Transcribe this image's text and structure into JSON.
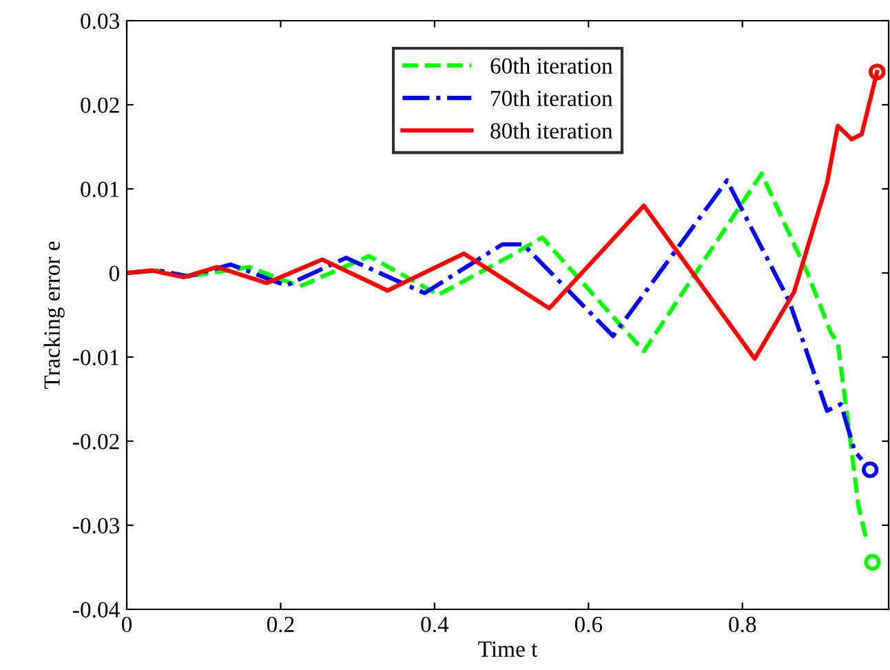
{
  "chart_data": {
    "type": "line",
    "xlabel": "Time t",
    "ylabel": "Tracking error e",
    "xlim": [
      0,
      0.99
    ],
    "ylim": [
      -0.04,
      0.03
    ],
    "xticks": [
      0,
      0.2,
      0.4,
      0.6,
      0.8
    ],
    "yticks": [
      -0.04,
      -0.03,
      -0.02,
      -0.01,
      0,
      0.01,
      0.02,
      0.03
    ],
    "grid": false,
    "legend": "top",
    "series": [
      {
        "name": "60th iteration",
        "color": "#00ff00",
        "line_style": "dashed",
        "x": [
          0,
          0.04,
          0.08,
          0.159,
          0.225,
          0.315,
          0.405,
          0.5,
          0.54,
          0.672,
          0.825,
          0.885,
          0.915,
          0.924,
          0.939,
          0.951,
          0.962
        ],
        "values": [
          0,
          0.0003,
          -0.0004,
          0.0007,
          -0.0016,
          0.002,
          -0.0026,
          0.0021,
          0.0042,
          -0.0093,
          0.0118,
          -0.0001,
          -0.0071,
          -0.0083,
          -0.019,
          -0.0278,
          -0.032
        ]
      },
      {
        "name": "70th iteration",
        "color": "#0000ff",
        "line_style": "dashdot",
        "x": [
          0,
          0.04,
          0.08,
          0.135,
          0.207,
          0.285,
          0.387,
          0.488,
          0.515,
          0.632,
          0.78,
          0.861,
          0.91,
          0.928,
          0.946,
          0.955
        ],
        "values": [
          0,
          0.0003,
          -0.0004,
          0.001,
          -0.0015,
          0.0018,
          -0.0024,
          0.0034,
          0.0034,
          -0.0075,
          0.011,
          -0.0034,
          -0.0164,
          -0.0156,
          -0.0212,
          -0.0222
        ]
      },
      {
        "name": "80th iteration",
        "color": "#ff0000",
        "line_style": "solid",
        "x": [
          0,
          0.032,
          0.074,
          0.117,
          0.182,
          0.254,
          0.339,
          0.438,
          0.549,
          0.672,
          0.816,
          0.867,
          0.91,
          0.924,
          0.942,
          0.955,
          0.975
        ],
        "values": [
          0,
          0.0003,
          -0.0005,
          0.0007,
          -0.0012,
          0.0016,
          -0.0021,
          0.0023,
          -0.0042,
          0.008,
          -0.0102,
          -0.0023,
          0.0107,
          0.0175,
          0.0159,
          0.0165,
          0.0239
        ]
      },
      {
        "type": "scatter",
        "marker": "circle",
        "color": "#00ff00",
        "x": [
          0.969
        ],
        "values": [
          -0.0344
        ]
      },
      {
        "type": "scatter",
        "marker": "circle",
        "color": "#0000ff",
        "x": [
          0.966
        ],
        "values": [
          -0.0234
        ]
      },
      {
        "type": "scatter",
        "marker": "circle",
        "color": "#ff0000",
        "x": [
          0.975
        ],
        "values": [
          0.0239
        ]
      }
    ]
  }
}
